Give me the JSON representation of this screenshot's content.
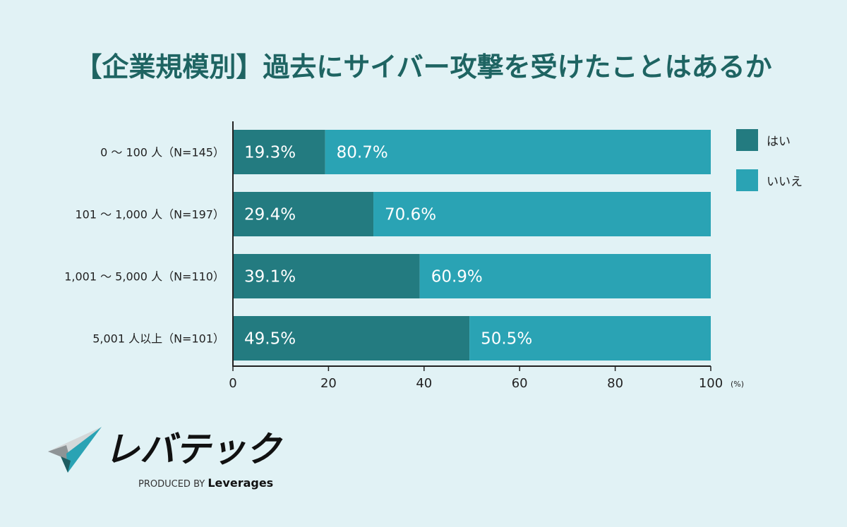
{
  "chart_data": {
    "type": "bar",
    "orientation": "horizontal",
    "stacked": true,
    "title": "【企業規模別】過去にサイバー攻撃を受けたことはあるか",
    "categories": [
      "0 〜 100 人（N=145）",
      "101 〜 1,000 人（N=197）",
      "1,001 〜 5,000 人（N=110）",
      "5,001 人以上（N=101）"
    ],
    "series": [
      {
        "name": "はい",
        "color": "#237b80",
        "values": [
          19.3,
          29.4,
          39.1,
          49.5
        ]
      },
      {
        "name": "いいえ",
        "color": "#2aa3b4",
        "values": [
          80.7,
          70.6,
          60.9,
          50.5
        ]
      }
    ],
    "xlim": [
      0,
      100
    ],
    "xticks": [
      0,
      20,
      40,
      60,
      80,
      100
    ],
    "xunit": "(%)",
    "grid": false,
    "legend": "right"
  },
  "brand": {
    "logo_text": "レバテック",
    "produced_by": "PRODUCED BY",
    "company": "Leverages"
  }
}
